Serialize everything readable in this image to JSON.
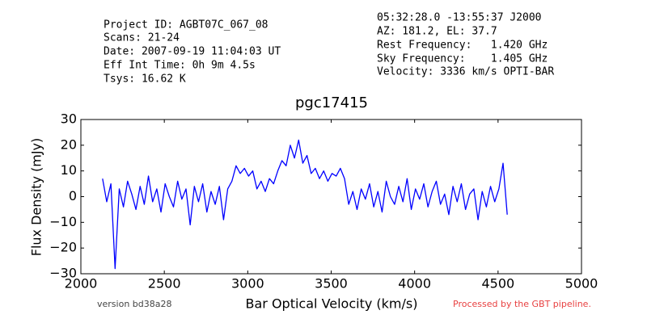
{
  "chart_data": {
    "type": "line",
    "title": "pgc17415",
    "info_left": [
      "Project ID: AGBT07C_067_08",
      "Scans: 21-24",
      "Date: 2007-09-19 11:04:03 UT",
      "Eff Int Time: 0h 9m 4.5s",
      "Tsys: 16.62 K"
    ],
    "info_right": [
      "05:32:28.0 -13:55:37 J2000",
      "AZ: 181.2, EL: 37.7",
      "Rest Frequency:   1.420 GHz",
      "Sky Frequency:    1.405 GHz",
      "Velocity: 3336 km/s OPTI-BAR"
    ],
    "footer_left": "version bd38a28",
    "footer_right": "Processed by the GBT pipeline.",
    "xlabel": "Bar Optical Velocity (km/s)",
    "ylabel": "Flux Density (mJy)",
    "xlim": [
      2000,
      5000
    ],
    "xticks": [
      2000,
      2500,
      3000,
      3500,
      4000,
      4500,
      5000
    ],
    "ylim": [
      -30,
      30
    ],
    "yticks": [
      {
        "value": -30,
        "label": "−30"
      },
      {
        "value": -20,
        "label": "−20"
      },
      {
        "value": -10,
        "label": "−10"
      },
      0,
      10,
      20,
      30
    ],
    "x": [
      2130,
      2155,
      2180,
      2205,
      2230,
      2255,
      2280,
      2305,
      2330,
      2355,
      2380,
      2405,
      2430,
      2455,
      2480,
      2505,
      2530,
      2555,
      2580,
      2605,
      2630,
      2655,
      2680,
      2705,
      2730,
      2755,
      2780,
      2805,
      2830,
      2855,
      2880,
      2905,
      2930,
      2955,
      2980,
      3005,
      3030,
      3055,
      3080,
      3105,
      3130,
      3155,
      3180,
      3205,
      3230,
      3255,
      3280,
      3305,
      3330,
      3355,
      3380,
      3405,
      3430,
      3455,
      3480,
      3505,
      3530,
      3555,
      3580,
      3605,
      3630,
      3655,
      3680,
      3705,
      3730,
      3755,
      3780,
      3805,
      3830,
      3855,
      3880,
      3905,
      3930,
      3955,
      3980,
      4005,
      4030,
      4055,
      4080,
      4105,
      4130,
      4155,
      4180,
      4205,
      4230,
      4255,
      4280,
      4305,
      4330,
      4355,
      4380,
      4405,
      4430,
      4455,
      4480,
      4505,
      4530,
      4555
    ],
    "series": [
      {
        "color": "#0000ff",
        "values": [
          7,
          -2,
          5,
          -28,
          3,
          -4,
          6,
          1,
          -5,
          4,
          -3,
          8,
          -2,
          3,
          -6,
          5,
          0,
          -4,
          6,
          -1,
          3,
          -11,
          4,
          -2,
          5,
          -6,
          2,
          -3,
          4,
          -9,
          3,
          6,
          12,
          9,
          11,
          8,
          10,
          3,
          6,
          2,
          7,
          5,
          10,
          14,
          12,
          20,
          15,
          22,
          13,
          16,
          9,
          11,
          7,
          10,
          6,
          9,
          8,
          11,
          7,
          -3,
          2,
          -5,
          3,
          -1,
          5,
          -4,
          2,
          -6,
          6,
          0,
          -3,
          4,
          -2,
          7,
          -5,
          3,
          -1,
          5,
          -4,
          2,
          6,
          -3,
          1,
          -7,
          4,
          -2,
          5,
          -5,
          1,
          3,
          -9,
          2,
          -4,
          4,
          -2,
          3,
          13,
          -7
        ]
      }
    ]
  }
}
